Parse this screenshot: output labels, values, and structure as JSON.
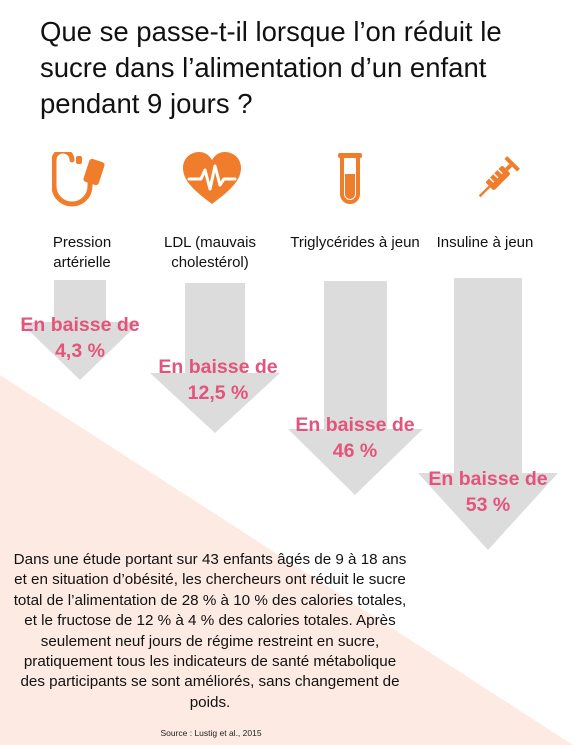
{
  "title": "Que se passe-t-il lorsque l’on réduit le sucre dans l’alimentation d’un enfant pendant 9 jours ?",
  "colors": {
    "icon_orange": "#f07d2c",
    "result_pink": "#e2547b",
    "arrow_grey": "#dcdcdc",
    "background_peach": "#fdebe3"
  },
  "indicators": [
    {
      "icon": "blood-pressure-gauge-icon",
      "label": "Pression artérielle",
      "result": "En baisse de 4,3 %",
      "decrease_percent": 4.3
    },
    {
      "icon": "heart-pulse-icon",
      "label": "LDL (mauvais cholestérol)",
      "result": "En baisse de 12,5 %",
      "decrease_percent": 12.5
    },
    {
      "icon": "test-tube-icon",
      "label": "Triglycérides à jeun",
      "result": "En baisse de 46 %",
      "decrease_percent": 46
    },
    {
      "icon": "syringe-icon",
      "label": "Insuline à jeun",
      "result": "En baisse de 53 %",
      "decrease_percent": 53
    }
  ],
  "body": "Dans une étude portant sur 43 enfants âgés de 9 à 18 ans et en situation d’obésité, les chercheurs ont réduit le sucre total de l’alimentation de 28 % à 10 % des calories totales, et le fructose de 12 % à 4 % des calories totales. Après seulement neuf jours de régime restreint en sucre, pratiquement tous les indicateurs de santé métabolique des participants se sont améliorés, sans changement de poids.",
  "source": "Source : Lustig et al., 2015"
}
